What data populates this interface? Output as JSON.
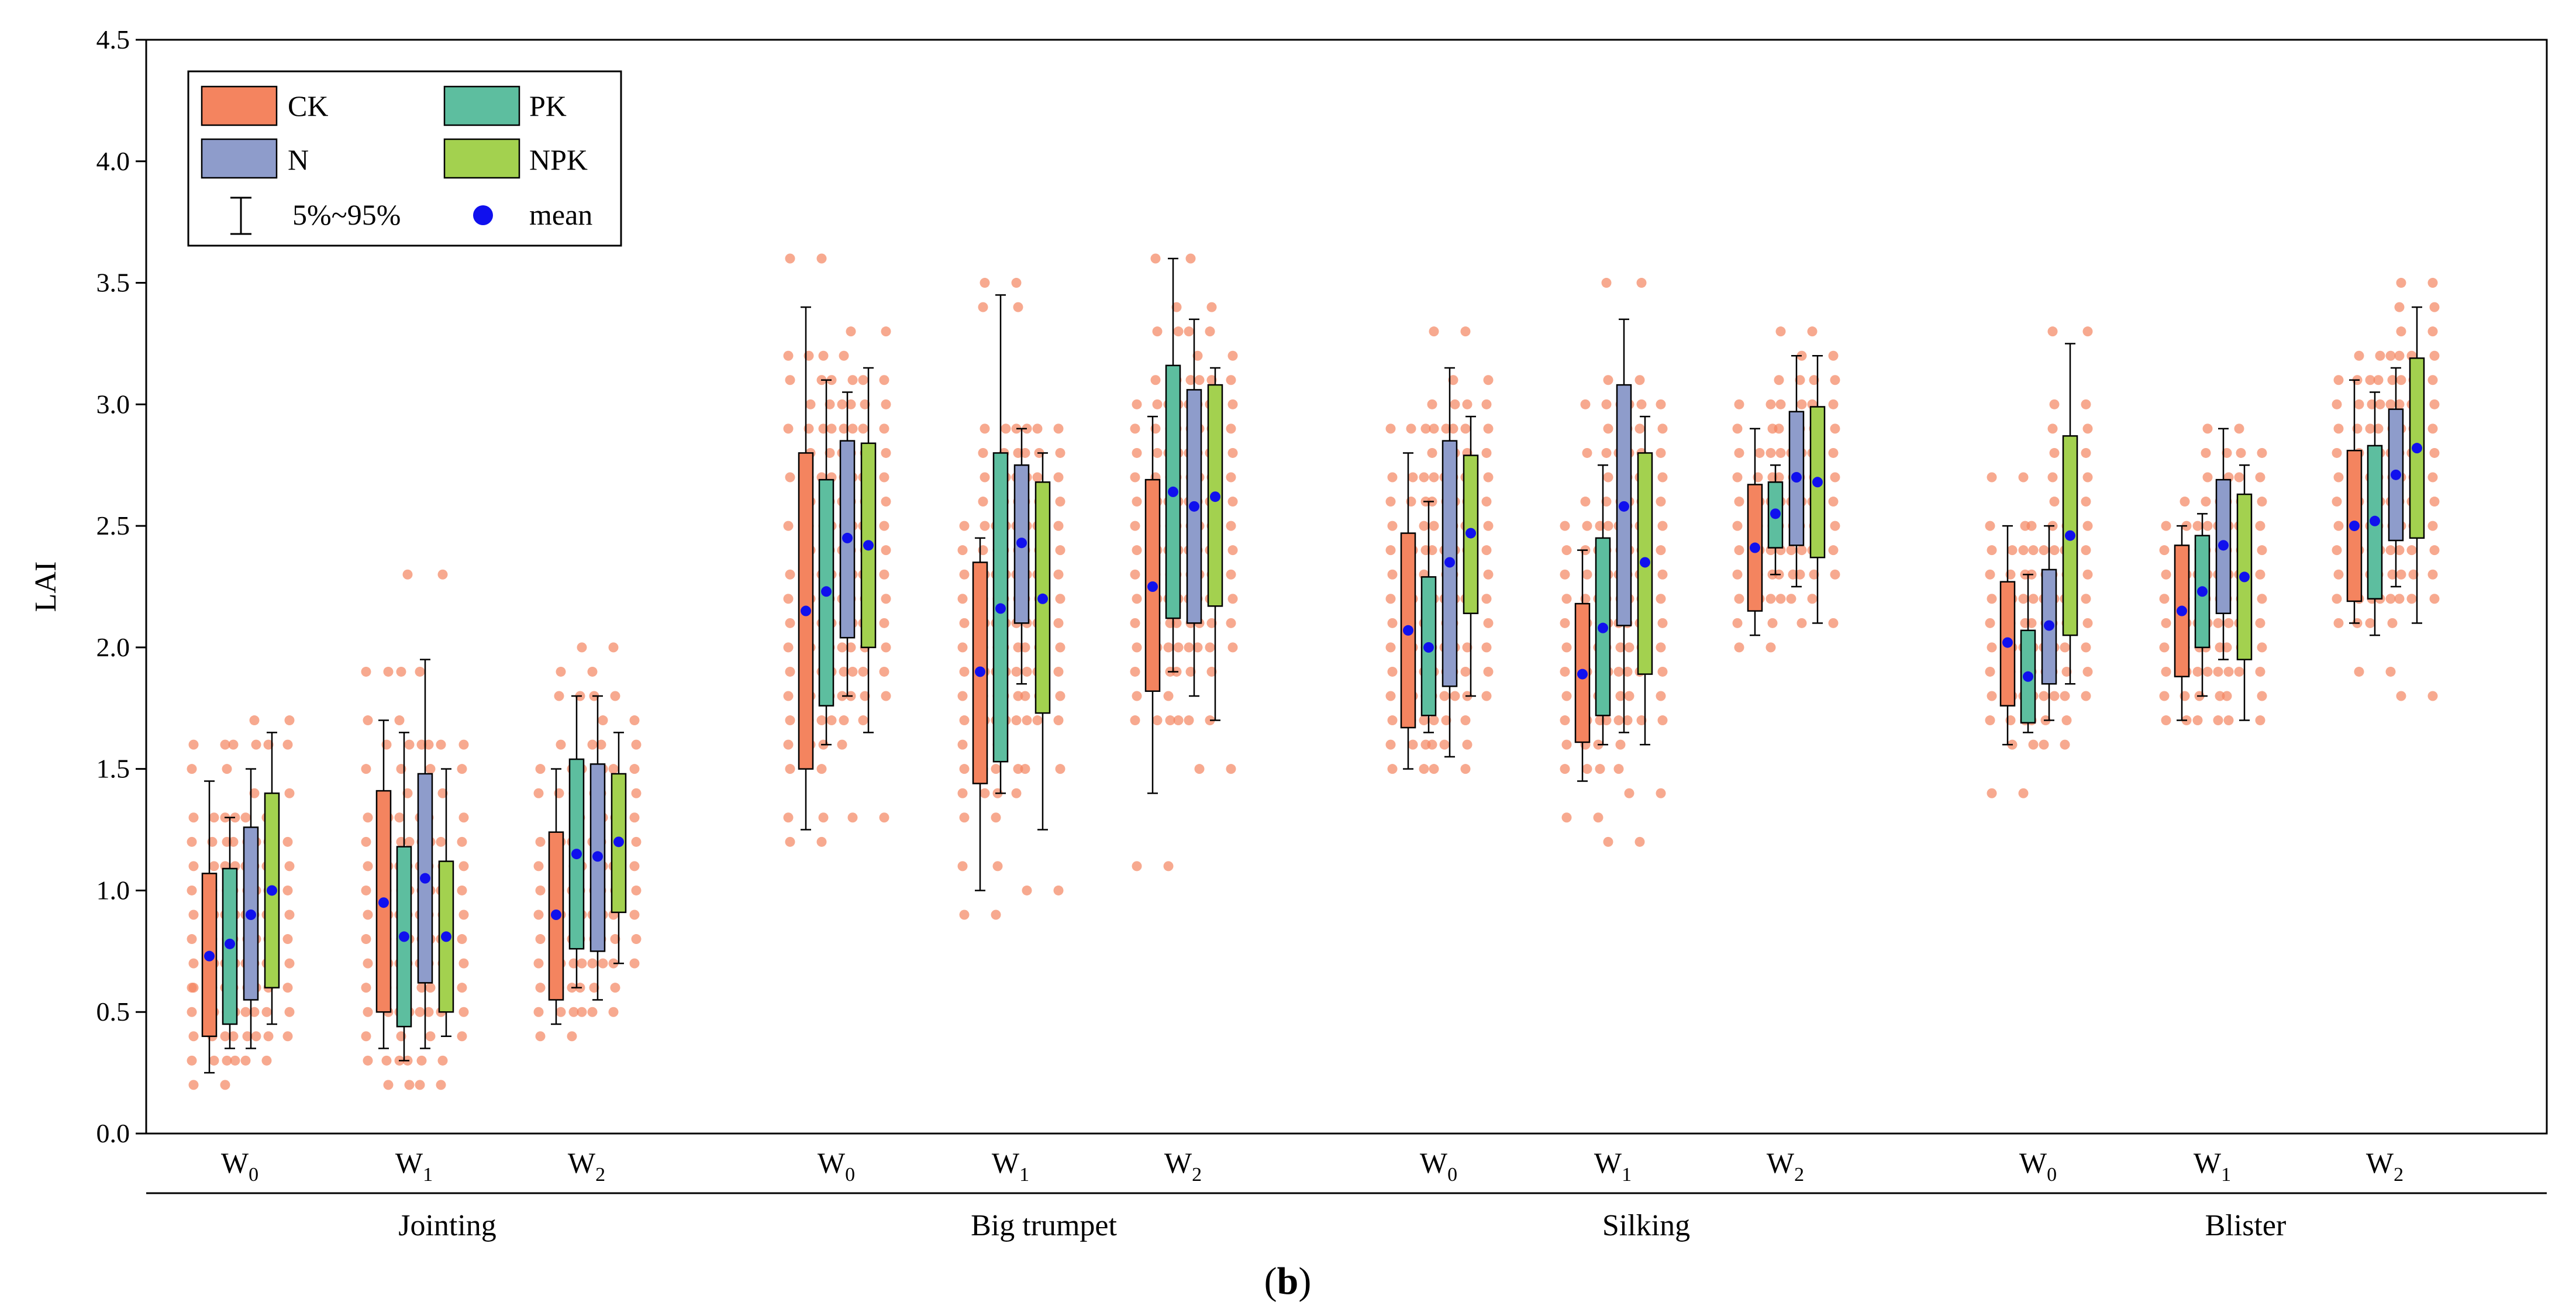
{
  "chart_data": {
    "type": "box",
    "ylabel": "LAI",
    "ylim": [
      0,
      4.5
    ],
    "yticks": [
      "0.0",
      "0.5",
      "1.0",
      "1.5",
      "2.0",
      "2.5",
      "3.0",
      "3.5",
      "4.0",
      "4.5"
    ],
    "panel_label": "(b)",
    "panel_letter": "b",
    "stages": [
      "Jointing",
      "Big trumpet",
      "Silking",
      "Blister"
    ],
    "water_levels": [
      {
        "base": "W",
        "sub": "0"
      },
      {
        "base": "W",
        "sub": "1"
      },
      {
        "base": "W",
        "sub": "2"
      }
    ],
    "series": [
      {
        "name": "CK",
        "color": "#F4845F"
      },
      {
        "name": "PK",
        "color": "#5DBE9F"
      },
      {
        "name": "N",
        "color": "#8E9CCB"
      },
      {
        "name": "NPK",
        "color": "#A3D14F"
      }
    ],
    "legend": {
      "whisker_label": "5%~95%",
      "mean_label": "mean",
      "mean_color": "#1010EE",
      "point_color": "#F4845F"
    },
    "boxes": [
      {
        "stage": "Jointing",
        "w": "W0",
        "s": "CK",
        "q1": 0.4,
        "q3": 1.07,
        "lo": 0.25,
        "hi": 1.45,
        "mean": 0.73
      },
      {
        "stage": "Jointing",
        "w": "W0",
        "s": "PK",
        "q1": 0.45,
        "q3": 1.09,
        "lo": 0.35,
        "hi": 1.3,
        "mean": 0.78
      },
      {
        "stage": "Jointing",
        "w": "W0",
        "s": "N",
        "q1": 0.55,
        "q3": 1.26,
        "lo": 0.35,
        "hi": 1.5,
        "mean": 0.9
      },
      {
        "stage": "Jointing",
        "w": "W0",
        "s": "NPK",
        "q1": 0.6,
        "q3": 1.4,
        "lo": 0.45,
        "hi": 1.65,
        "mean": 1.0
      },
      {
        "stage": "Jointing",
        "w": "W1",
        "s": "CK",
        "q1": 0.5,
        "q3": 1.41,
        "lo": 0.35,
        "hi": 1.7,
        "mean": 0.95
      },
      {
        "stage": "Jointing",
        "w": "W1",
        "s": "PK",
        "q1": 0.44,
        "q3": 1.18,
        "lo": 0.3,
        "hi": 1.65,
        "mean": 0.81
      },
      {
        "stage": "Jointing",
        "w": "W1",
        "s": "N",
        "q1": 0.62,
        "q3": 1.48,
        "lo": 0.35,
        "hi": 1.95,
        "mean": 1.05
      },
      {
        "stage": "Jointing",
        "w": "W1",
        "s": "NPK",
        "q1": 0.5,
        "q3": 1.12,
        "lo": 0.4,
        "hi": 1.5,
        "mean": 0.81
      },
      {
        "stage": "Jointing",
        "w": "W2",
        "s": "CK",
        "q1": 0.55,
        "q3": 1.24,
        "lo": 0.45,
        "hi": 1.5,
        "mean": 0.9
      },
      {
        "stage": "Jointing",
        "w": "W2",
        "s": "PK",
        "q1": 0.76,
        "q3": 1.54,
        "lo": 0.6,
        "hi": 1.8,
        "mean": 1.15
      },
      {
        "stage": "Jointing",
        "w": "W2",
        "s": "N",
        "q1": 0.75,
        "q3": 1.52,
        "lo": 0.55,
        "hi": 1.8,
        "mean": 1.14
      },
      {
        "stage": "Jointing",
        "w": "W2",
        "s": "NPK",
        "q1": 0.91,
        "q3": 1.48,
        "lo": 0.7,
        "hi": 1.65,
        "mean": 1.2
      },
      {
        "stage": "Big trumpet",
        "w": "W0",
        "s": "CK",
        "q1": 1.5,
        "q3": 2.8,
        "lo": 1.25,
        "hi": 3.4,
        "mean": 2.15
      },
      {
        "stage": "Big trumpet",
        "w": "W0",
        "s": "PK",
        "q1": 1.76,
        "q3": 2.69,
        "lo": 1.6,
        "hi": 3.1,
        "mean": 2.23
      },
      {
        "stage": "Big trumpet",
        "w": "W0",
        "s": "N",
        "q1": 2.04,
        "q3": 2.85,
        "lo": 1.8,
        "hi": 3.05,
        "mean": 2.45
      },
      {
        "stage": "Big trumpet",
        "w": "W0",
        "s": "NPK",
        "q1": 2.0,
        "q3": 2.84,
        "lo": 1.65,
        "hi": 3.15,
        "mean": 2.42
      },
      {
        "stage": "Big trumpet",
        "w": "W1",
        "s": "CK",
        "q1": 1.44,
        "q3": 2.35,
        "lo": 1.0,
        "hi": 2.45,
        "mean": 1.9
      },
      {
        "stage": "Big trumpet",
        "w": "W1",
        "s": "PK",
        "q1": 1.53,
        "q3": 2.8,
        "lo": 1.4,
        "hi": 3.45,
        "mean": 2.16
      },
      {
        "stage": "Big trumpet",
        "w": "W1",
        "s": "N",
        "q1": 2.1,
        "q3": 2.75,
        "lo": 1.85,
        "hi": 2.9,
        "mean": 2.43
      },
      {
        "stage": "Big trumpet",
        "w": "W1",
        "s": "NPK",
        "q1": 1.73,
        "q3": 2.68,
        "lo": 1.25,
        "hi": 2.8,
        "mean": 2.2
      },
      {
        "stage": "Big trumpet",
        "w": "W2",
        "s": "CK",
        "q1": 1.82,
        "q3": 2.69,
        "lo": 1.4,
        "hi": 2.95,
        "mean": 2.25
      },
      {
        "stage": "Big trumpet",
        "w": "W2",
        "s": "PK",
        "q1": 2.12,
        "q3": 3.16,
        "lo": 1.9,
        "hi": 3.6,
        "mean": 2.64
      },
      {
        "stage": "Big trumpet",
        "w": "W2",
        "s": "N",
        "q1": 2.1,
        "q3": 3.06,
        "lo": 1.8,
        "hi": 3.35,
        "mean": 2.58
      },
      {
        "stage": "Big trumpet",
        "w": "W2",
        "s": "NPK",
        "q1": 2.17,
        "q3": 3.08,
        "lo": 1.7,
        "hi": 3.15,
        "mean": 2.62
      },
      {
        "stage": "Silking",
        "w": "W0",
        "s": "CK",
        "q1": 1.67,
        "q3": 2.47,
        "lo": 1.5,
        "hi": 2.8,
        "mean": 2.07
      },
      {
        "stage": "Silking",
        "w": "W0",
        "s": "PK",
        "q1": 1.72,
        "q3": 2.29,
        "lo": 1.65,
        "hi": 2.6,
        "mean": 2.0
      },
      {
        "stage": "Silking",
        "w": "W0",
        "s": "N",
        "q1": 1.84,
        "q3": 2.85,
        "lo": 1.55,
        "hi": 3.15,
        "mean": 2.35
      },
      {
        "stage": "Silking",
        "w": "W0",
        "s": "NPK",
        "q1": 2.14,
        "q3": 2.79,
        "lo": 1.8,
        "hi": 2.95,
        "mean": 2.47
      },
      {
        "stage": "Silking",
        "w": "W1",
        "s": "CK",
        "q1": 1.61,
        "q3": 2.18,
        "lo": 1.45,
        "hi": 2.4,
        "mean": 1.89
      },
      {
        "stage": "Silking",
        "w": "W1",
        "s": "PK",
        "q1": 1.72,
        "q3": 2.45,
        "lo": 1.6,
        "hi": 2.75,
        "mean": 2.08
      },
      {
        "stage": "Silking",
        "w": "W1",
        "s": "N",
        "q1": 2.09,
        "q3": 3.08,
        "lo": 1.65,
        "hi": 3.35,
        "mean": 2.58
      },
      {
        "stage": "Silking",
        "w": "W1",
        "s": "NPK",
        "q1": 1.89,
        "q3": 2.8,
        "lo": 1.6,
        "hi": 2.95,
        "mean": 2.35
      },
      {
        "stage": "Silking",
        "w": "W2",
        "s": "CK",
        "q1": 2.15,
        "q3": 2.67,
        "lo": 2.05,
        "hi": 2.9,
        "mean": 2.41
      },
      {
        "stage": "Silking",
        "w": "W2",
        "s": "PK",
        "q1": 2.41,
        "q3": 2.68,
        "lo": 2.3,
        "hi": 2.75,
        "mean": 2.55
      },
      {
        "stage": "Silking",
        "w": "W2",
        "s": "N",
        "q1": 2.42,
        "q3": 2.97,
        "lo": 2.25,
        "hi": 3.2,
        "mean": 2.7
      },
      {
        "stage": "Silking",
        "w": "W2",
        "s": "NPK",
        "q1": 2.37,
        "q3": 2.99,
        "lo": 2.1,
        "hi": 3.2,
        "mean": 2.68
      },
      {
        "stage": "Blister",
        "w": "W0",
        "s": "CK",
        "q1": 1.76,
        "q3": 2.27,
        "lo": 1.6,
        "hi": 2.5,
        "mean": 2.02
      },
      {
        "stage": "Blister",
        "w": "W0",
        "s": "PK",
        "q1": 1.69,
        "q3": 2.07,
        "lo": 1.65,
        "hi": 2.3,
        "mean": 1.88
      },
      {
        "stage": "Blister",
        "w": "W0",
        "s": "N",
        "q1": 1.85,
        "q3": 2.32,
        "lo": 1.7,
        "hi": 2.5,
        "mean": 2.09
      },
      {
        "stage": "Blister",
        "w": "W0",
        "s": "NPK",
        "q1": 2.05,
        "q3": 2.87,
        "lo": 1.85,
        "hi": 3.25,
        "mean": 2.46
      },
      {
        "stage": "Blister",
        "w": "W1",
        "s": "CK",
        "q1": 1.88,
        "q3": 2.42,
        "lo": 1.7,
        "hi": 2.5,
        "mean": 2.15
      },
      {
        "stage": "Blister",
        "w": "W1",
        "s": "PK",
        "q1": 2.0,
        "q3": 2.46,
        "lo": 1.8,
        "hi": 2.55,
        "mean": 2.23
      },
      {
        "stage": "Blister",
        "w": "W1",
        "s": "N",
        "q1": 2.14,
        "q3": 2.69,
        "lo": 1.95,
        "hi": 2.9,
        "mean": 2.42
      },
      {
        "stage": "Blister",
        "w": "W1",
        "s": "NPK",
        "q1": 1.95,
        "q3": 2.63,
        "lo": 1.7,
        "hi": 2.75,
        "mean": 2.29
      },
      {
        "stage": "Blister",
        "w": "W2",
        "s": "CK",
        "q1": 2.19,
        "q3": 2.81,
        "lo": 2.1,
        "hi": 3.1,
        "mean": 2.5
      },
      {
        "stage": "Blister",
        "w": "W2",
        "s": "PK",
        "q1": 2.2,
        "q3": 2.83,
        "lo": 2.05,
        "hi": 3.05,
        "mean": 2.52
      },
      {
        "stage": "Blister",
        "w": "W2",
        "s": "N",
        "q1": 2.44,
        "q3": 2.98,
        "lo": 2.25,
        "hi": 3.15,
        "mean": 2.71
      },
      {
        "stage": "Blister",
        "w": "W2",
        "s": "NPK",
        "q1": 2.45,
        "q3": 3.19,
        "lo": 2.1,
        "hi": 3.4,
        "mean": 2.82
      }
    ],
    "points": [
      [
        0.2,
        0.3,
        0.4,
        0.5,
        0.6,
        0.6,
        0.7,
        0.8,
        0.9,
        1.0,
        1.1,
        1.2,
        1.3,
        1.5,
        1.6
      ],
      [
        0.3,
        0.4,
        0.5,
        0.6,
        0.7,
        0.8,
        0.9,
        1.0,
        1.1,
        1.2,
        1.3
      ],
      [
        0.3,
        0.4,
        0.5,
        0.6,
        0.7,
        0.8,
        0.9,
        1.0,
        1.1,
        1.2,
        1.3,
        1.6
      ],
      [
        0.4,
        0.5,
        0.6,
        0.7,
        0.8,
        0.9,
        1.0,
        1.1,
        1.2,
        1.4,
        1.6,
        1.7
      ],
      [
        0.3,
        0.4,
        0.5,
        0.6,
        0.7,
        0.8,
        0.9,
        1.0,
        1.1,
        1.2,
        1.3,
        1.5,
        1.7,
        1.9
      ],
      [
        0.2,
        0.3,
        0.5,
        0.6,
        0.7,
        0.8,
        0.9,
        1.0,
        1.1,
        1.2,
        1.3,
        1.6,
        1.9
      ],
      [
        0.2,
        0.3,
        0.5,
        0.7,
        0.8,
        0.9,
        1.0,
        1.1,
        1.2,
        1.4,
        1.6,
        2.3
      ],
      [
        0.4,
        0.5,
        0.6,
        0.7,
        0.8,
        0.9,
        1.0,
        1.1,
        1.2,
        1.3,
        1.5,
        1.6
      ],
      [
        0.4,
        0.5,
        0.6,
        0.7,
        0.8,
        0.9,
        1.0,
        1.1,
        1.2,
        1.4,
        1.5
      ],
      [
        0.5,
        0.6,
        0.7,
        0.8,
        0.9,
        1.0,
        1.2,
        1.4,
        1.6,
        1.8,
        1.9
      ],
      [
        0.5,
        0.6,
        0.7,
        0.8,
        0.9,
        1.0,
        1.1,
        1.3,
        1.5,
        1.8,
        2.0
      ],
      [
        0.7,
        0.8,
        0.9,
        1.0,
        1.1,
        1.2,
        1.3,
        1.4,
        1.5,
        1.6,
        1.7
      ],
      [
        1.2,
        1.3,
        1.5,
        1.6,
        1.7,
        1.8,
        1.9,
        2.0,
        2.1,
        2.2,
        2.3,
        2.5,
        2.7,
        2.9,
        3.1,
        3.2,
        3.6
      ],
      [
        1.6,
        1.7,
        1.8,
        1.9,
        2.0,
        2.1,
        2.2,
        2.3,
        2.4,
        2.5,
        2.6,
        2.7,
        2.8,
        2.9,
        3.0,
        3.2
      ],
      [
        1.7,
        1.8,
        1.9,
        2.0,
        2.1,
        2.2,
        2.3,
        2.4,
        2.5,
        2.6,
        2.7,
        2.8,
        2.9,
        3.0,
        3.1
      ],
      [
        1.3,
        1.8,
        1.9,
        2.0,
        2.1,
        2.2,
        2.3,
        2.4,
        2.5,
        2.6,
        2.7,
        2.8,
        2.9,
        3.0,
        3.1,
        3.3
      ],
      [
        0.9,
        1.1,
        1.3,
        1.4,
        1.5,
        1.6,
        1.7,
        1.8,
        1.9,
        2.0,
        2.1,
        2.2,
        2.3,
        2.4,
        2.5
      ],
      [
        1.4,
        1.5,
        1.7,
        1.8,
        1.9,
        2.0,
        2.1,
        2.2,
        2.3,
        2.4,
        2.5,
        2.6,
        2.7,
        2.8,
        2.9,
        3.4,
        3.5
      ],
      [
        1.7,
        1.8,
        1.9,
        2.0,
        2.1,
        2.2,
        2.3,
        2.4,
        2.5,
        2.6,
        2.7,
        2.8,
        2.9
      ],
      [
        1.0,
        1.5,
        1.7,
        1.8,
        1.9,
        2.0,
        2.1,
        2.2,
        2.3,
        2.4,
        2.5,
        2.6,
        2.7,
        2.8,
        2.9
      ],
      [
        1.1,
        1.7,
        1.8,
        1.9,
        2.0,
        2.1,
        2.2,
        2.3,
        2.4,
        2.5,
        2.6,
        2.7,
        2.8,
        2.9,
        3.0
      ],
      [
        1.7,
        1.9,
        2.0,
        2.1,
        2.2,
        2.3,
        2.4,
        2.5,
        2.6,
        2.7,
        2.8,
        2.9,
        3.0,
        3.1,
        3.3,
        3.6
      ],
      [
        1.7,
        1.9,
        2.0,
        2.1,
        2.2,
        2.3,
        2.4,
        2.5,
        2.6,
        2.7,
        2.8,
        2.9,
        3.0,
        3.1,
        3.3,
        3.4
      ],
      [
        1.5,
        2.0,
        2.1,
        2.2,
        2.3,
        2.4,
        2.5,
        2.6,
        2.7,
        2.8,
        2.9,
        3.0,
        3.1,
        3.2
      ],
      [
        1.5,
        1.6,
        1.7,
        1.8,
        1.9,
        2.0,
        2.1,
        2.2,
        2.3,
        2.4,
        2.5,
        2.6,
        2.7,
        2.9
      ],
      [
        1.6,
        1.7,
        1.8,
        1.9,
        2.0,
        2.1,
        2.2,
        2.3,
        2.4,
        2.6,
        2.7,
        2.9
      ],
      [
        1.5,
        1.6,
        1.7,
        1.8,
        1.9,
        2.0,
        2.2,
        2.4,
        2.5,
        2.6,
        2.7,
        2.8,
        2.9,
        3.0,
        3.3
      ],
      [
        1.8,
        1.9,
        2.0,
        2.1,
        2.2,
        2.3,
        2.4,
        2.5,
        2.6,
        2.7,
        2.8,
        2.9,
        3.0,
        3.1
      ],
      [
        1.3,
        1.5,
        1.6,
        1.7,
        1.8,
        1.9,
        2.0,
        2.1,
        2.2,
        2.3,
        2.4,
        2.5
      ],
      [
        1.5,
        1.6,
        1.7,
        1.8,
        1.9,
        2.0,
        2.1,
        2.2,
        2.3,
        2.4,
        2.5,
        2.6,
        2.8,
        3.0
      ],
      [
        1.2,
        1.7,
        1.9,
        2.0,
        2.1,
        2.2,
        2.3,
        2.4,
        2.5,
        2.6,
        2.7,
        2.8,
        2.9,
        3.0,
        3.1,
        3.5
      ],
      [
        1.4,
        1.7,
        1.8,
        1.9,
        2.0,
        2.1,
        2.2,
        2.3,
        2.4,
        2.5,
        2.6,
        2.7,
        2.8,
        2.9,
        3.0
      ],
      [
        2.0,
        2.1,
        2.2,
        2.3,
        2.4,
        2.5,
        2.6,
        2.7,
        2.8,
        2.9,
        3.0
      ],
      [
        2.2,
        2.3,
        2.4,
        2.5,
        2.6,
        2.7,
        2.8
      ],
      [
        2.2,
        2.3,
        2.4,
        2.5,
        2.6,
        2.7,
        2.8,
        2.9,
        3.0,
        3.1,
        3.3
      ],
      [
        2.1,
        2.3,
        2.4,
        2.5,
        2.6,
        2.7,
        2.8,
        2.9,
        3.0,
        3.1,
        3.2
      ],
      [
        1.4,
        1.7,
        1.8,
        1.9,
        2.0,
        2.1,
        2.2,
        2.3,
        2.4,
        2.5,
        2.7
      ],
      [
        1.6,
        1.7,
        1.8,
        1.9,
        2.0,
        2.1,
        2.2,
        2.3,
        2.4
      ],
      [
        1.6,
        1.7,
        1.8,
        1.9,
        2.0,
        2.1,
        2.2,
        2.3,
        2.4,
        2.5
      ],
      [
        1.8,
        1.9,
        2.0,
        2.1,
        2.2,
        2.3,
        2.4,
        2.5,
        2.6,
        2.7,
        2.8,
        2.9,
        3.0,
        3.3
      ],
      [
        1.7,
        1.8,
        1.9,
        2.0,
        2.1,
        2.2,
        2.3,
        2.4,
        2.5
      ],
      [
        1.7,
        1.8,
        1.9,
        2.0,
        2.1,
        2.2,
        2.3,
        2.4,
        2.5,
        2.6
      ],
      [
        1.9,
        2.0,
        2.1,
        2.2,
        2.3,
        2.4,
        2.5,
        2.6,
        2.7,
        2.8,
        2.9
      ],
      [
        1.7,
        1.8,
        1.9,
        2.0,
        2.1,
        2.2,
        2.3,
        2.4,
        2.5,
        2.6,
        2.7,
        2.8
      ],
      [
        2.1,
        2.2,
        2.3,
        2.4,
        2.5,
        2.6,
        2.7,
        2.8,
        2.9,
        3.0,
        3.1
      ],
      [
        1.9,
        2.1,
        2.2,
        2.3,
        2.4,
        2.5,
        2.6,
        2.7,
        2.8,
        2.9,
        3.0,
        3.1,
        3.2
      ],
      [
        2.2,
        2.3,
        2.4,
        2.5,
        2.6,
        2.7,
        2.8,
        2.9,
        3.0,
        3.1,
        3.2
      ],
      [
        1.8,
        2.2,
        2.3,
        2.4,
        2.5,
        2.6,
        2.7,
        2.8,
        2.9,
        3.0,
        3.1,
        3.2,
        3.3,
        3.4,
        3.5
      ]
    ]
  }
}
